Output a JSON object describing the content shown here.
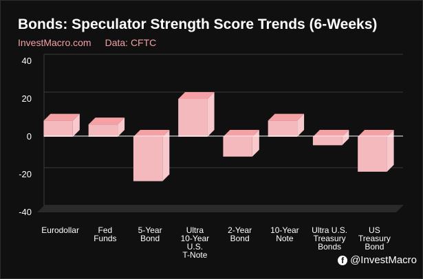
{
  "header": {
    "title": "Bonds: Speculator Strength Score Trends (6-Weeks)",
    "source_site": "InvestMacro.com",
    "source_data": "Data: CFTC"
  },
  "watermark": {
    "handle": "@InvestMacro",
    "icon": "facebook-icon"
  },
  "colors": {
    "bar_front": "#f4b9bd",
    "bar_top": "#f4a0a4",
    "bar_side": "#f7c9cc",
    "background": "#101010",
    "floor": "#2a2a2a"
  },
  "chart_data": {
    "type": "bar",
    "title": "Bonds: Speculator Strength Score Trends (6-Weeks)",
    "xlabel": "",
    "ylabel": "",
    "categories": [
      [
        "Eurodollar"
      ],
      [
        "Fed",
        "Funds"
      ],
      [
        "5-Year",
        "Bond"
      ],
      [
        "Ultra",
        "10-Year",
        "U.S.",
        "T-Note"
      ],
      [
        "2-Year",
        "Bond"
      ],
      [
        "10-Year",
        "Note"
      ],
      [
        "Ultra U.S.",
        "Treasury",
        "Bonds"
      ],
      [
        "US",
        "Treasury",
        "Bond"
      ]
    ],
    "values": [
      8.5,
      6.5,
      -23.5,
      20,
      -10.5,
      8.5,
      -4.5,
      -18.5
    ],
    "ylim": [
      -40,
      40
    ],
    "yticks": [
      40,
      20,
      0,
      -20,
      -40
    ],
    "grid": true,
    "style": "3d"
  }
}
